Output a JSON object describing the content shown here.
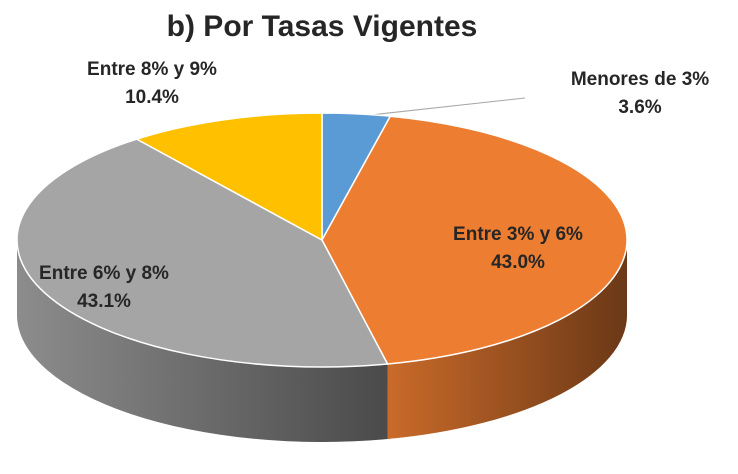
{
  "chart_data": {
    "type": "pie",
    "title": "b) Por Tasas Vigentes",
    "categories": [
      "Menores de 3%",
      "Entre 3% y 6%",
      "Entre 6% y 8%",
      "Entre 8% y 9%"
    ],
    "values": [
      3.6,
      43.0,
      43.1,
      10.4
    ],
    "value_labels": [
      "3.6%",
      "43.0%",
      "43.1%",
      "10.4%"
    ],
    "colors": [
      "#5b9bd5",
      "#ed7d31",
      "#a5a5a5",
      "#ffc000"
    ],
    "style": "3d"
  }
}
